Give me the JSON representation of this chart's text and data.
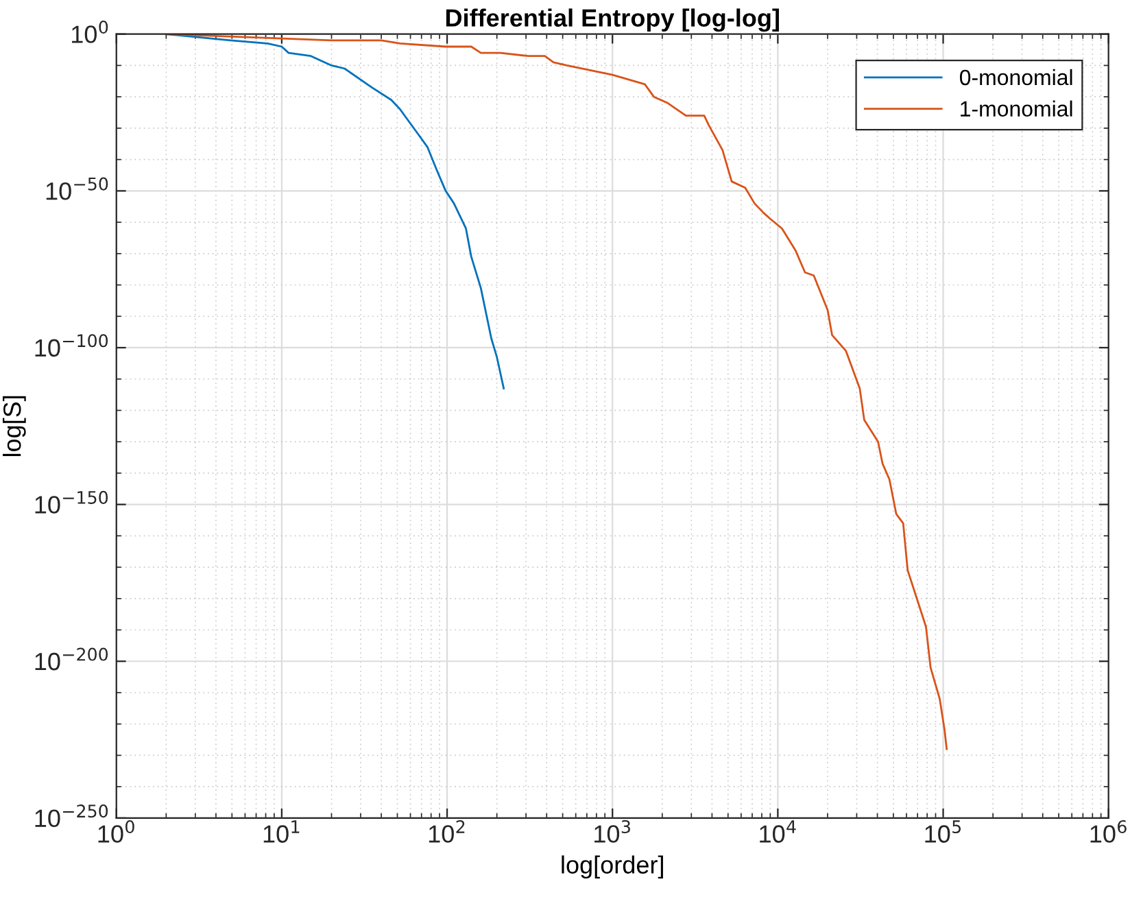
{
  "chart_data": {
    "type": "line",
    "title": "Differential Entropy [log-log]",
    "xlabel": "log[order]",
    "ylabel": "log[S]",
    "log": "xy",
    "grid": true,
    "legend": "top right",
    "xlim": [
      1,
      1000000
    ],
    "ylim": [
      1e-250,
      1
    ],
    "xticks": [
      {
        "value": 1,
        "label": "10$^{0}$"
      },
      {
        "value": 10,
        "label": "10$^{1}$"
      },
      {
        "value": 100,
        "label": "10$^{2}$"
      },
      {
        "value": 1000,
        "label": "10$^{3}$"
      },
      {
        "value": 10000,
        "label": "10$^{4}$"
      },
      {
        "value": 100000,
        "label": "10$^{5}$"
      },
      {
        "value": 1000000,
        "label": "10$^{6}$"
      }
    ],
    "yticks": [
      {
        "value": 1e-250,
        "label": "10$^{−250}$"
      },
      {
        "value": 1e-200,
        "label": "10$^{−200}$"
      },
      {
        "value": 1e-150,
        "label": "10$^{−150}$"
      },
      {
        "value": 1e-100,
        "label": "10$^{−100}$"
      },
      {
        "value": 1e-50,
        "label": "10$^{−50}$"
      },
      {
        "value": 1,
        "label": "10$^{0}$"
      }
    ],
    "series": [
      {
        "name": "0-monomial",
        "color": "#0072bd",
        "x": [
          2,
          4.9,
          8.2,
          10,
          11,
          15,
          20,
          24,
          35,
          46,
          52,
          59,
          67,
          76,
          86,
          98,
          110,
          130,
          140,
          160,
          185,
          200,
          220
        ],
        "values": [
          1.0,
          0.01,
          0.001,
          0.0001,
          1e-06,
          1e-07,
          1e-10,
          1e-11,
          1e-17,
          1e-21,
          1e-24,
          1e-28,
          1e-32,
          1e-36,
          1e-43,
          1e-50,
          1e-54,
          1e-62,
          1e-71,
          1e-81,
          1e-97,
          1e-103,
          1e-113
        ]
      },
      {
        "name": "1-monomial",
        "color": "#d95319",
        "x": [
          2,
          20,
          40,
          52,
          98,
          140,
          160,
          210,
          310,
          390,
          440,
          530,
          1000,
          1570,
          1780,
          2160,
          2780,
          3590,
          3820,
          4630,
          5260,
          6350,
          7230,
          8200,
          9040,
          10600,
          12800,
          14600,
          16500,
          20000,
          21300,
          25800,
          31300,
          33300,
          40400,
          43000,
          47300,
          52000,
          57300,
          61000,
          69300,
          78700,
          83900,
          95300,
          102000,
          105000
        ],
        "values": [
          1.0,
          0.01,
          0.01,
          0.001,
          0.0001,
          0.0001,
          1e-06,
          1e-06,
          1e-07,
          1e-07,
          1e-09,
          1e-10,
          1e-13,
          1e-16,
          1e-20,
          1e-22,
          1e-26,
          1e-26,
          1e-29,
          1e-37,
          1e-47,
          1e-49,
          1e-54,
          1e-57,
          1e-59,
          1e-62,
          1e-69,
          1e-76,
          1e-77,
          1e-88,
          1e-96,
          1e-101,
          1e-113,
          1e-123,
          1e-130,
          1e-137,
          1e-142,
          1e-153,
          1e-156,
          1e-171,
          1e-180,
          1e-189,
          1e-202,
          1e-212,
          1e-222,
          1e-228
        ]
      }
    ]
  }
}
